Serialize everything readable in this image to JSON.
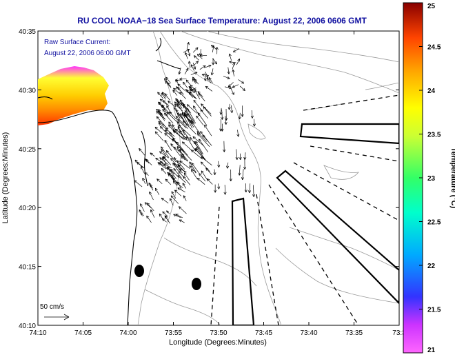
{
  "figure": {
    "title": "RU COOL  NOAA−18  Sea Surface Temperature:  August 22, 2006 0606 GMT",
    "annotation_line1": "Raw Surface Current:",
    "annotation_line2": "August 22, 2006 06:00 GMT",
    "scale_label": "50 cm/s",
    "xlabel": "Longitude (Degrees:Minutes)",
    "ylabel": "Latitude (Degrees:Minutes)",
    "colorbar_label": "Temperature (°C)"
  },
  "map": {
    "x_ticks": [
      "74:10",
      "74:05",
      "74:00",
      "73:55",
      "73:50",
      "73:45",
      "73:40",
      "73:35",
      "73:3"
    ],
    "y_ticks": [
      "40:35",
      "40:30",
      "40:25",
      "40:20",
      "40:15",
      "40:10"
    ],
    "colorbar_ticks": [
      "25",
      "24.5",
      "24",
      "23.5",
      "23",
      "22.5",
      "22",
      "21.5",
      "21"
    ],
    "colorbar_range": [
      21,
      25
    ],
    "colors": {
      "title": "#1010a0",
      "annotation": "#1010a0",
      "axis": "#000000",
      "contour": "#9a9a9a",
      "coast": "#000000"
    }
  }
}
